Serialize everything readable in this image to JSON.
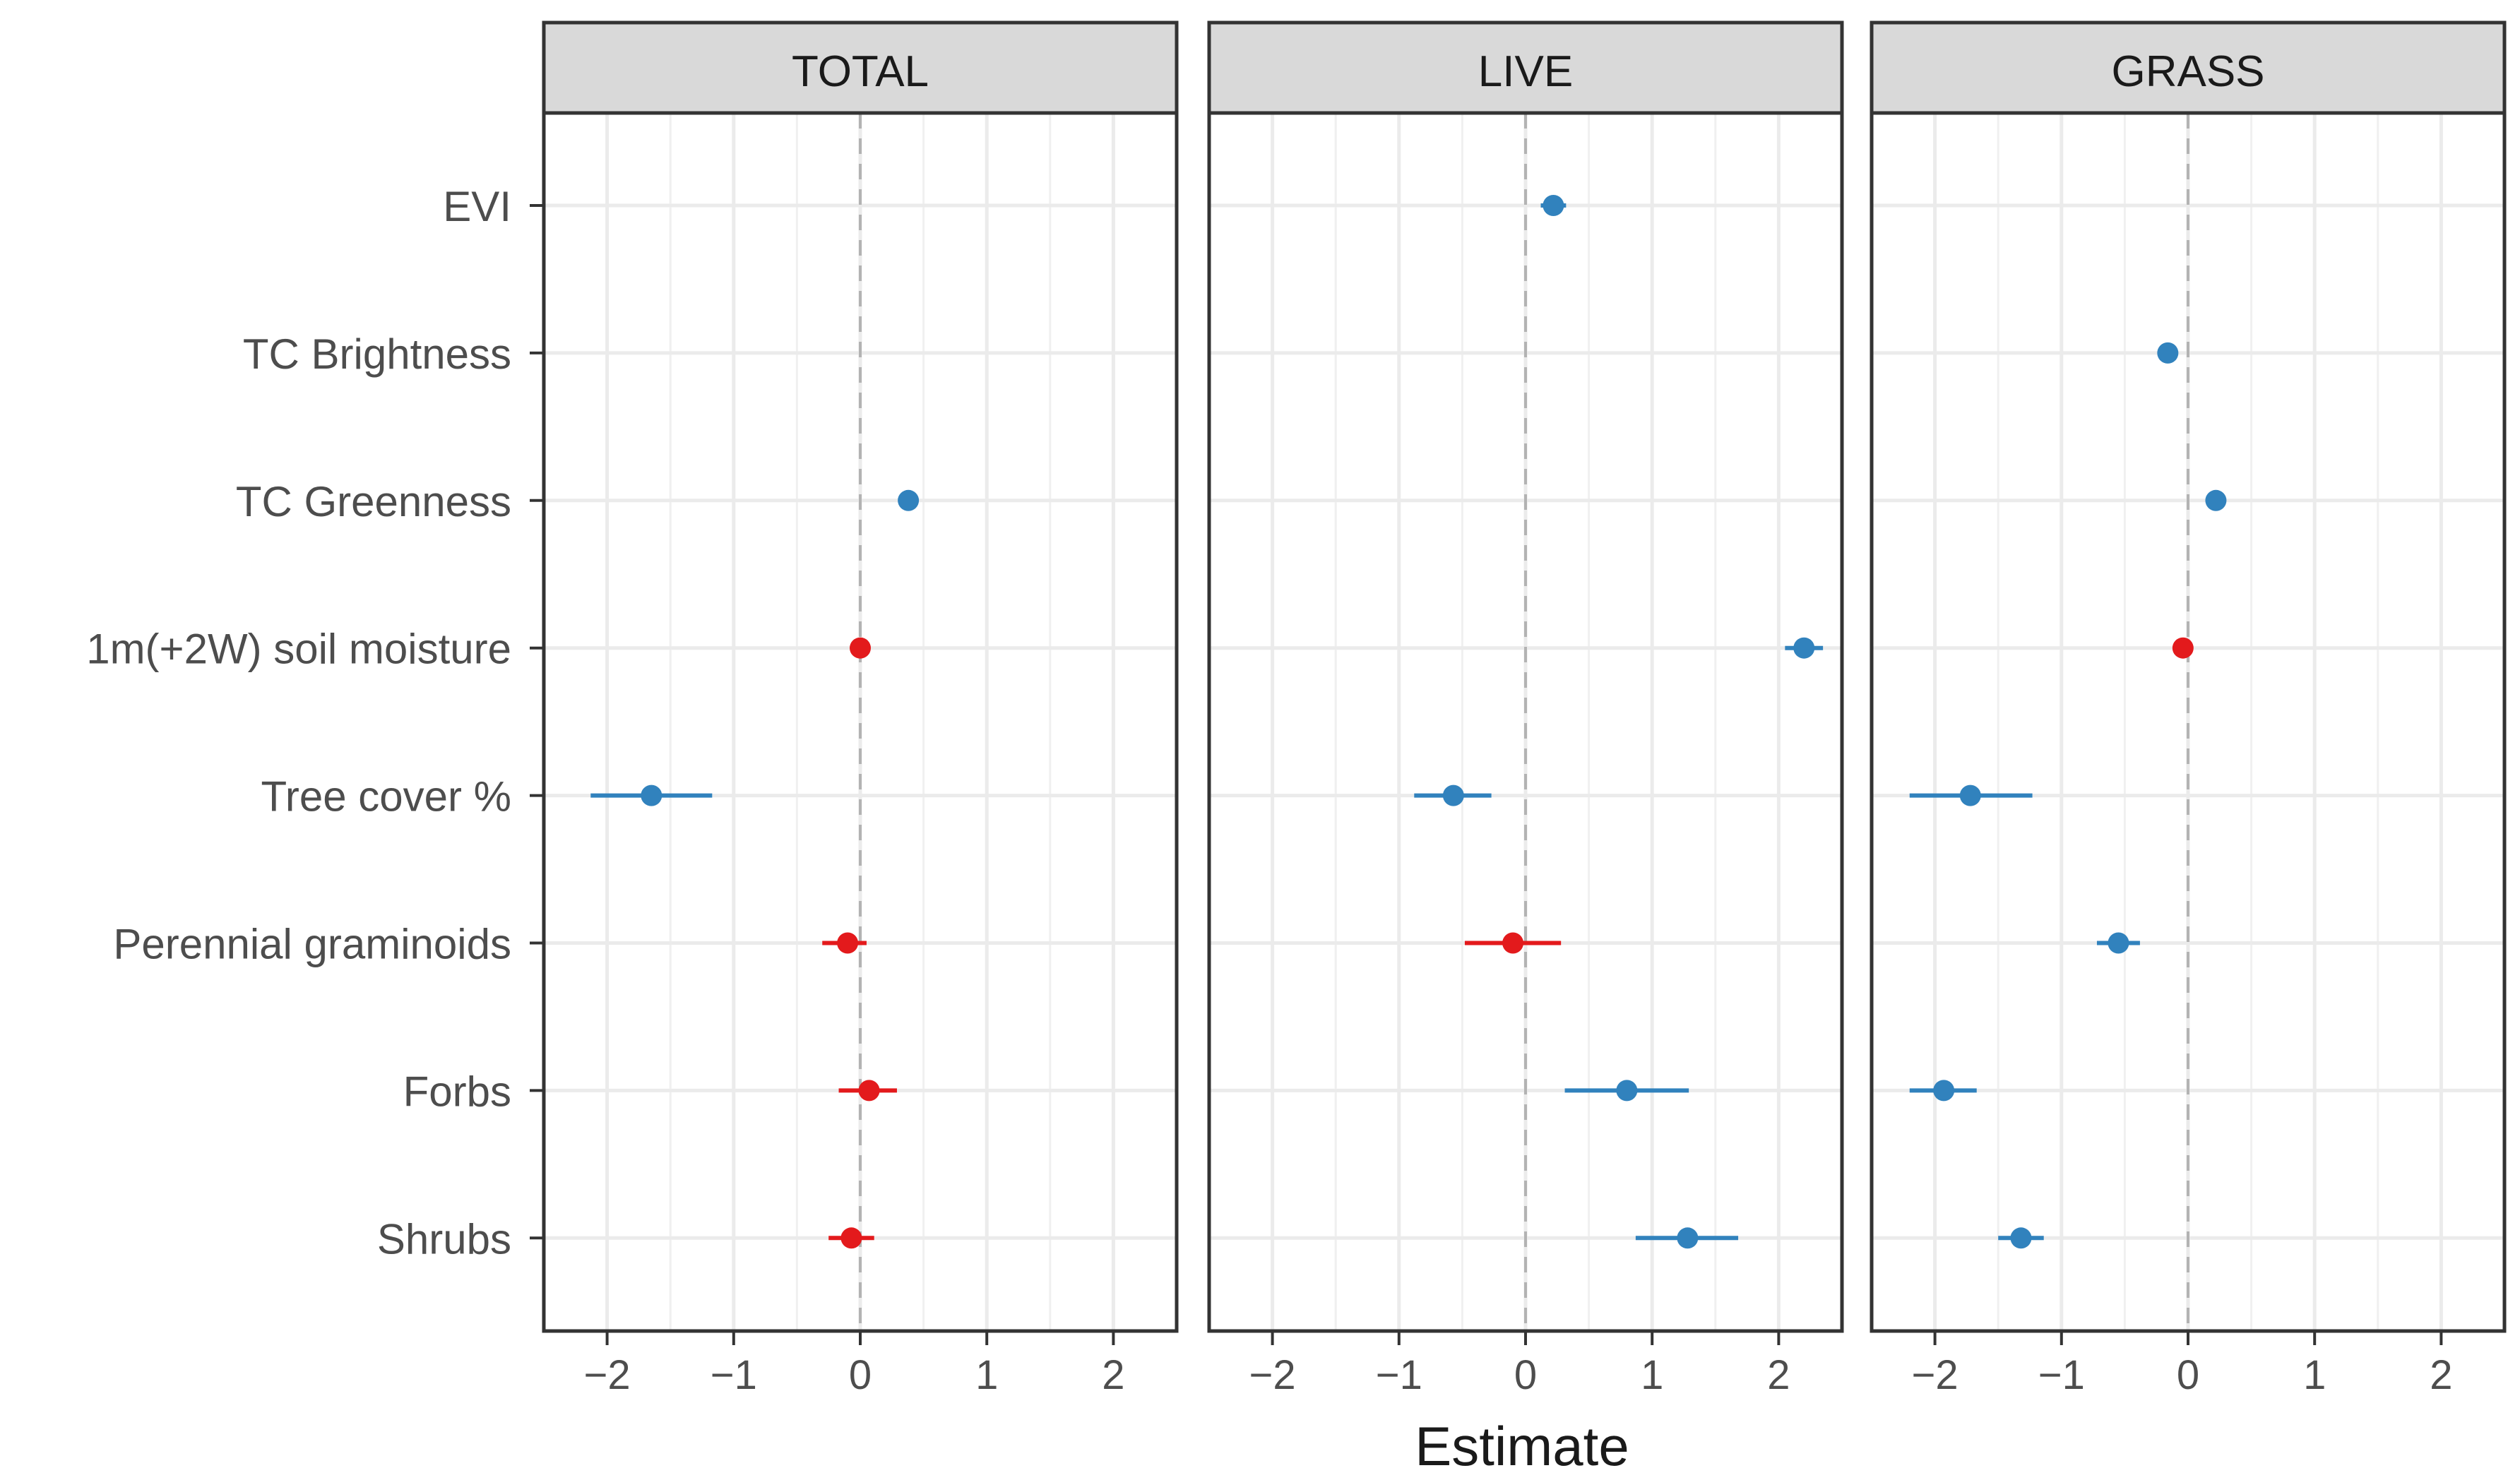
{
  "chart_data": {
    "type": "dot-and-whisker",
    "xlabel": "Estimate",
    "xlim": [
      -2.5,
      2.5
    ],
    "xticks": [
      -2,
      -1,
      0,
      1,
      2
    ],
    "xtick_labels": [
      "−2",
      "−1",
      "0",
      "1",
      "2"
    ],
    "reference_line": 0,
    "grid": true,
    "legend": "none",
    "colors": {
      "positive_or_negative_effect": "#3182bd",
      "uncertain_effect": "#e31a1c"
    },
    "categories": [
      "EVI",
      "TC Brightness",
      "TC Greenness",
      "1m(+2W) soil moisture",
      "Tree cover %",
      "Perennial graminoids",
      "Forbs",
      "Shrubs"
    ],
    "panels": [
      {
        "title": "TOTAL",
        "points": [
          {
            "category": "Tree cover %",
            "estimate": -1.65,
            "lo": -2.13,
            "hi": -1.17,
            "color": "#3182bd"
          },
          {
            "category": "TC Greenness",
            "estimate": 0.38,
            "lo": 0.33,
            "hi": 0.43,
            "color": "#3182bd"
          },
          {
            "category": "1m(+2W) soil moisture",
            "estimate": 0.0,
            "lo": -0.05,
            "hi": 0.05,
            "color": "#e31a1c"
          },
          {
            "category": "Perennial graminoids",
            "estimate": -0.1,
            "lo": -0.3,
            "hi": 0.05,
            "color": "#e31a1c"
          },
          {
            "category": "Forbs",
            "estimate": 0.07,
            "lo": -0.17,
            "hi": 0.29,
            "color": "#e31a1c"
          },
          {
            "category": "Shrubs",
            "estimate": -0.07,
            "lo": -0.25,
            "hi": 0.11,
            "color": "#e31a1c"
          }
        ]
      },
      {
        "title": "LIVE",
        "points": [
          {
            "category": "EVI",
            "estimate": 0.22,
            "lo": 0.12,
            "hi": 0.32,
            "color": "#3182bd"
          },
          {
            "category": "1m(+2W) soil moisture",
            "estimate": 2.2,
            "lo": 2.05,
            "hi": 2.35,
            "color": "#3182bd"
          },
          {
            "category": "Tree cover %",
            "estimate": -0.57,
            "lo": -0.88,
            "hi": -0.27,
            "color": "#3182bd"
          },
          {
            "category": "Perennial graminoids",
            "estimate": -0.1,
            "lo": -0.48,
            "hi": 0.28,
            "color": "#e31a1c"
          },
          {
            "category": "Forbs",
            "estimate": 0.8,
            "lo": 0.31,
            "hi": 1.29,
            "color": "#3182bd"
          },
          {
            "category": "Shrubs",
            "estimate": 1.28,
            "lo": 0.87,
            "hi": 1.68,
            "color": "#3182bd"
          }
        ]
      },
      {
        "title": "GRASS",
        "points": [
          {
            "category": "TC Brightness",
            "estimate": -0.16,
            "lo": -0.21,
            "hi": -0.11,
            "color": "#3182bd"
          },
          {
            "category": "TC Greenness",
            "estimate": 0.22,
            "lo": 0.17,
            "hi": 0.27,
            "color": "#3182bd"
          },
          {
            "category": "1m(+2W) soil moisture",
            "estimate": -0.04,
            "lo": -0.09,
            "hi": 0.01,
            "color": "#e31a1c"
          },
          {
            "category": "Tree cover %",
            "estimate": -1.72,
            "lo": -2.2,
            "hi": -1.23,
            "color": "#3182bd"
          },
          {
            "category": "Perennial graminoids",
            "estimate": -0.55,
            "lo": -0.72,
            "hi": -0.38,
            "color": "#3182bd"
          },
          {
            "category": "Forbs",
            "estimate": -1.93,
            "lo": -2.2,
            "hi": -1.67,
            "color": "#3182bd"
          },
          {
            "category": "Shrubs",
            "estimate": -1.32,
            "lo": -1.5,
            "hi": -1.14,
            "color": "#3182bd"
          }
        ]
      }
    ]
  }
}
